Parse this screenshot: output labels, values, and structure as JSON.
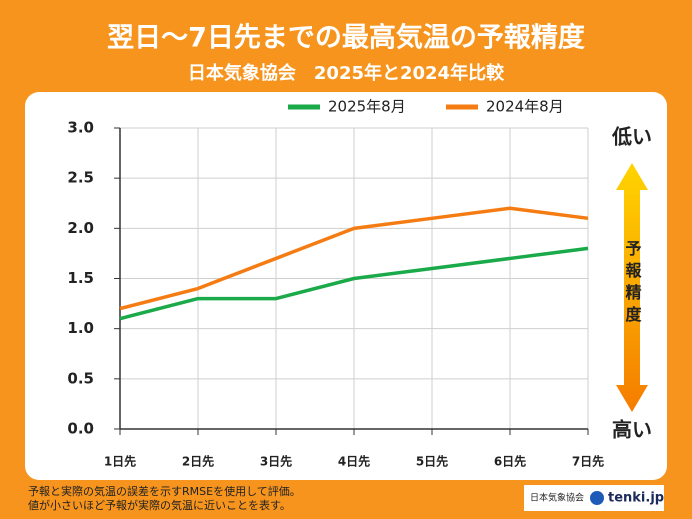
{
  "chart_data": {
    "type": "line",
    "title": "翌日〜7日先までの最高気温の予報精度",
    "subtitle": "日本気象協会　2025年と2024年比較",
    "categories": [
      "1日先",
      "2日先",
      "3日先",
      "4日先",
      "5日先",
      "6日先",
      "7日先"
    ],
    "series": [
      {
        "name": "2025年8月",
        "color": "#1aaa4a",
        "values": [
          1.1,
          1.3,
          1.3,
          1.5,
          1.6,
          1.7,
          1.8
        ]
      },
      {
        "name": "2024年8月",
        "color": "#f57c12",
        "values": [
          1.2,
          1.4,
          1.7,
          2.0,
          2.1,
          2.2,
          2.1
        ]
      }
    ],
    "ylim": [
      0,
      3
    ],
    "yticks": [
      {
        "value": 0,
        "label": "0.0"
      },
      {
        "value": 0.5,
        "label": "0.5"
      },
      {
        "value": 1,
        "label": "1.0"
      },
      {
        "value": 1.5,
        "label": "1.5"
      },
      {
        "value": 2,
        "label": "2.0"
      },
      {
        "value": 2.5,
        "label": "2.5"
      },
      {
        "value": 3,
        "label": "3.0"
      }
    ],
    "grid": true,
    "legend": "top",
    "annotations": {
      "top": "低い",
      "bottom": "高い",
      "axis": "予報精度"
    },
    "notes": [
      "予報と実際の気温の誤差を示すRMSEを使用して評価。",
      "値が小さいほど予報が実際の気温に近いことを表す。"
    ],
    "source": [
      "日本気象協会",
      "tenki.jp"
    ]
  }
}
